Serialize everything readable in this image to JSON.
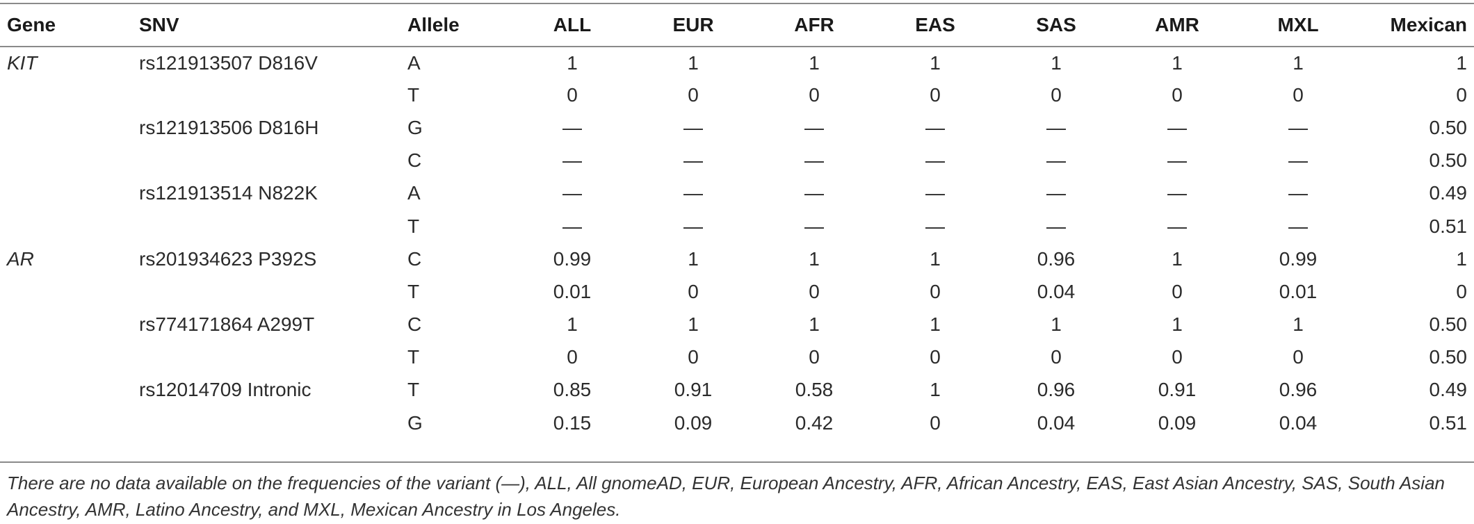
{
  "table": {
    "headers": [
      "Gene",
      "SNV",
      "Allele",
      "ALL",
      "EUR",
      "AFR",
      "EAS",
      "SAS",
      "AMR",
      "MXL",
      "Mexican"
    ],
    "rows": [
      {
        "gene": "KIT",
        "snv": "rs121913507 D816V",
        "allele": "A",
        "values": [
          "1",
          "1",
          "1",
          "1",
          "1",
          "1",
          "1",
          "1"
        ]
      },
      {
        "gene": "",
        "snv": "",
        "allele": "T",
        "values": [
          "0",
          "0",
          "0",
          "0",
          "0",
          "0",
          "0",
          "0"
        ]
      },
      {
        "gene": "",
        "snv": "rs121913506 D816H",
        "allele": "G",
        "values": [
          "—",
          "—",
          "—",
          "—",
          "—",
          "—",
          "—",
          "0.50"
        ]
      },
      {
        "gene": "",
        "snv": "",
        "allele": "C",
        "values": [
          "—",
          "—",
          "—",
          "—",
          "—",
          "—",
          "—",
          "0.50"
        ]
      },
      {
        "gene": "",
        "snv": "rs121913514 N822K",
        "allele": "A",
        "values": [
          "—",
          "—",
          "—",
          "—",
          "—",
          "—",
          "—",
          "0.49"
        ]
      },
      {
        "gene": "",
        "snv": "",
        "allele": "T",
        "values": [
          "—",
          "—",
          "—",
          "—",
          "—",
          "—",
          "—",
          "0.51"
        ]
      },
      {
        "gene": "AR",
        "snv": "rs201934623 P392S",
        "allele": "C",
        "values": [
          "0.99",
          "1",
          "1",
          "1",
          "0.96",
          "1",
          "0.99",
          "1"
        ]
      },
      {
        "gene": "",
        "snv": "",
        "allele": "T",
        "values": [
          "0.01",
          "0",
          "0",
          "0",
          "0.04",
          "0",
          "0.01",
          "0"
        ]
      },
      {
        "gene": "",
        "snv": "rs774171864 A299T",
        "allele": "C",
        "values": [
          "1",
          "1",
          "1",
          "1",
          "1",
          "1",
          "1",
          "0.50"
        ]
      },
      {
        "gene": "",
        "snv": "",
        "allele": "T",
        "values": [
          "0",
          "0",
          "0",
          "0",
          "0",
          "0",
          "0",
          "0.50"
        ]
      },
      {
        "gene": "",
        "snv": "rs12014709 Intronic",
        "allele": "T",
        "values": [
          "0.85",
          "0.91",
          "0.58",
          "1",
          "0.96",
          "0.91",
          "0.96",
          "0.49"
        ]
      },
      {
        "gene": "",
        "snv": "",
        "allele": "G",
        "values": [
          "0.15",
          "0.09",
          "0.42",
          "0",
          "0.04",
          "0.09",
          "0.04",
          "0.51"
        ]
      }
    ]
  },
  "footnote": "There are no data available on the frequencies of the variant (—), ALL, All gnomeAD, EUR, European Ancestry, AFR, African Ancestry, EAS, East Asian Ancestry, SAS, South Asian Ancestry, AMR, Latino Ancestry, and MXL, Mexican Ancestry in Los Angeles."
}
